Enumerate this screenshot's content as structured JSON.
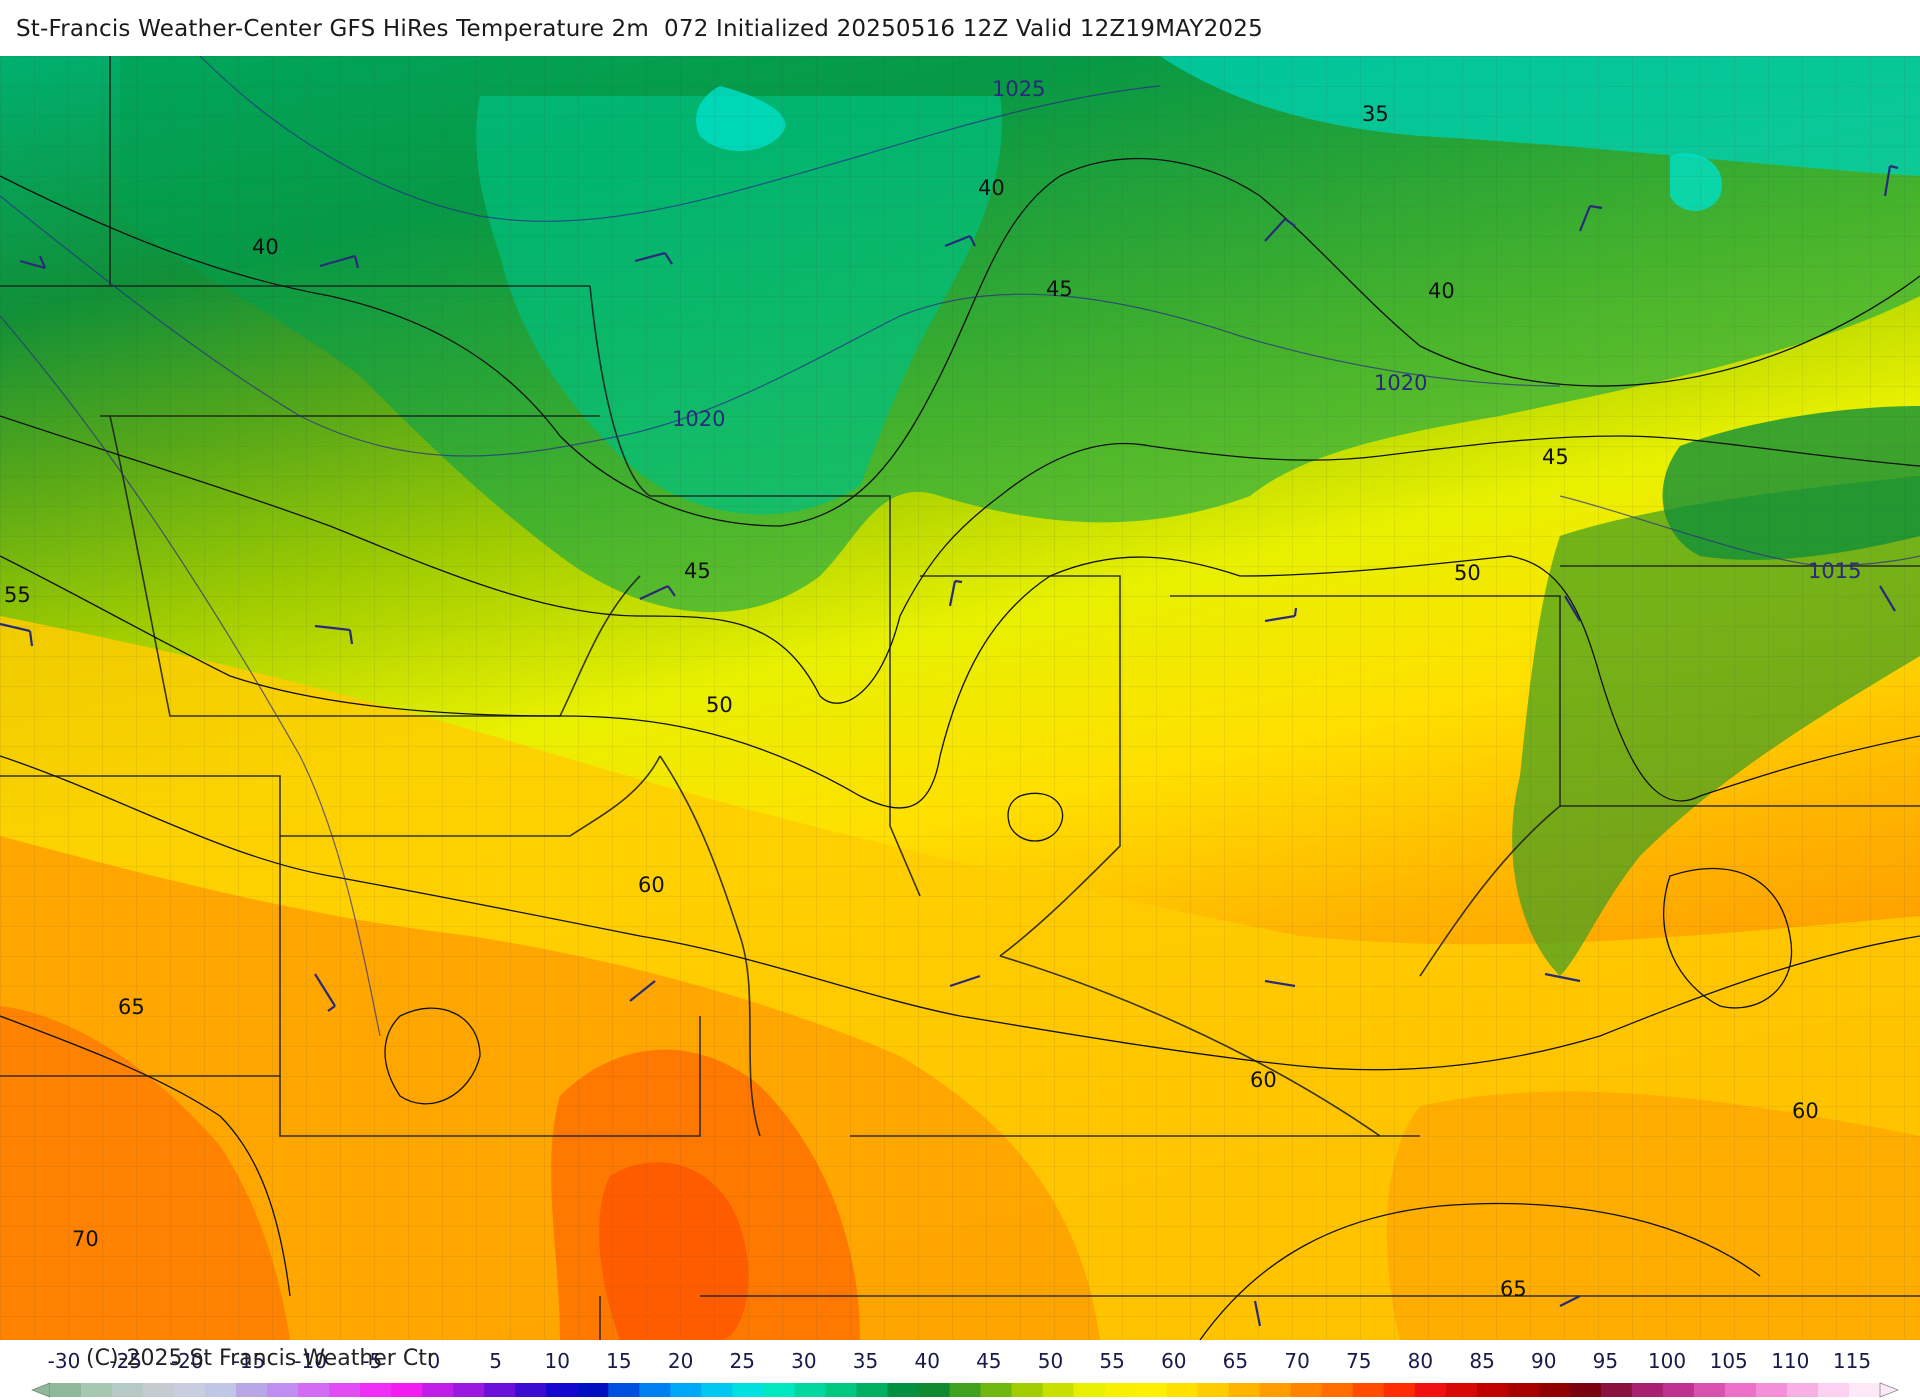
{
  "header": {
    "title": "St-Francis Weather-Center GFS HiRes Temperature 2m  072 Initialized 20250516 12Z Valid 12Z19MAY2025"
  },
  "map": {
    "variable": "Temperature 2m",
    "temperature_contour_labels": [
      "35",
      "40",
      "40",
      "40",
      "45",
      "45",
      "45",
      "50",
      "50",
      "55",
      "60",
      "60",
      "60",
      "65",
      "65",
      "70"
    ],
    "pressure_contour_labels": [
      "1025",
      "1020",
      "1020",
      "1015"
    ]
  },
  "colorbar": {
    "copyright": "(C)-2025 St Francis Weather Ctr",
    "ticks": [
      "-30",
      "-25",
      "-20",
      "-15",
      "-10",
      "-5",
      "0",
      "5",
      "10",
      "15",
      "20",
      "25",
      "30",
      "35",
      "40",
      "45",
      "50",
      "55",
      "60",
      "65",
      "70",
      "75",
      "80",
      "85",
      "90",
      "95",
      "100",
      "105",
      "110",
      "115"
    ],
    "colors": [
      "#8fb89a",
      "#a8c7b0",
      "#b7c9c4",
      "#c4ccd2",
      "#c8cde0",
      "#bfc6e6",
      "#b9a6e6",
      "#c08ef0",
      "#d26cf2",
      "#e24cf5",
      "#ee2ef7",
      "#f01cf0",
      "#c21ce8",
      "#9a18e0",
      "#6a10d8",
      "#3c0cd2",
      "#1408d0",
      "#0010c0",
      "#0050e0",
      "#0080f0",
      "#00a8f8",
      "#00c8f0",
      "#00e0e0",
      "#00e8c0",
      "#00d8a0",
      "#00c880",
      "#00b060",
      "#009040",
      "#108830",
      "#40a020",
      "#70b810",
      "#a0cc00",
      "#c8e000",
      "#e8f000",
      "#f8f000",
      "#fff000",
      "#ffe000",
      "#ffcc00",
      "#ffb400",
      "#ff9c00",
      "#ff8400",
      "#ff6c00",
      "#ff4c00",
      "#ff2c00",
      "#f01010",
      "#d80808",
      "#c00000",
      "#a80000",
      "#900000",
      "#7a0010",
      "#8a1040",
      "#a82070",
      "#c03090",
      "#d850b0",
      "#ec70c8",
      "#f490d8",
      "#f8b0e4",
      "#fcd0f0",
      "#fde8f8"
    ]
  }
}
